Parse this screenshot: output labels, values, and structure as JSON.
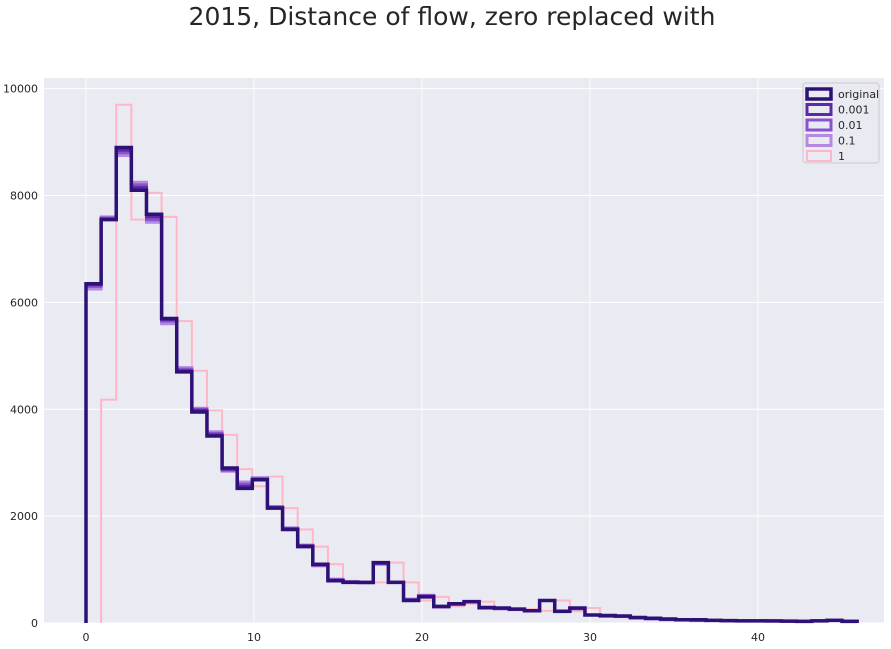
{
  "chart_data": {
    "type": "histogram",
    "title": "2015, Distance of flow, zero replaced with",
    "xlabel": "",
    "ylabel": "",
    "xlim": [
      -2.5,
      47.5
    ],
    "ylim": [
      0,
      10200
    ],
    "xticks": [
      0,
      10,
      20,
      30,
      40
    ],
    "yticks": [
      0,
      2000,
      4000,
      6000,
      8000,
      10000
    ],
    "grid": true,
    "legend_position": "top-right",
    "bin_width": 0.9,
    "series": [
      {
        "name": "original",
        "color": "#2d1177",
        "line_width": 3.5,
        "x_start": 0,
        "values": [
          6350,
          7550,
          8900,
          8100,
          7650,
          5700,
          4700,
          3950,
          3500,
          2900,
          2520,
          2680,
          2150,
          1750,
          1430,
          1100,
          790,
          760,
          760,
          1130,
          760,
          420,
          490,
          310,
          360,
          400,
          290,
          280,
          260,
          230,
          420,
          220,
          280,
          150,
          140,
          130,
          100,
          90,
          75,
          60,
          60,
          50,
          45,
          40,
          40,
          40,
          35,
          30,
          40,
          50,
          30
        ]
      },
      {
        "name": "0.001",
        "color": "#5c2aa5",
        "line_width": 3,
        "x_start": 0,
        "values": [
          6330,
          7560,
          8850,
          8150,
          7600,
          5680,
          4720,
          3980,
          3520,
          2880,
          2560,
          2690,
          2160,
          1760,
          1440,
          1090,
          800,
          765,
          760,
          1120,
          760,
          430,
          500,
          305,
          355,
          400,
          285,
          275,
          260,
          230,
          420,
          220,
          275,
          150,
          135,
          130,
          100,
          85,
          70,
          60,
          55,
          50,
          45,
          40,
          40,
          38,
          35,
          30,
          40,
          50,
          30
        ]
      },
      {
        "name": "0.01",
        "color": "#8a52cc",
        "line_width": 3,
        "x_start": 0,
        "values": [
          6300,
          7580,
          8800,
          8200,
          7550,
          5650,
          4750,
          4000,
          3550,
          2860,
          2600,
          2700,
          2170,
          1770,
          1450,
          1080,
          810,
          770,
          755,
          1110,
          760,
          440,
          510,
          300,
          350,
          400,
          280,
          270,
          255,
          230,
          420,
          215,
          270,
          150,
          130,
          125,
          100,
          80,
          65,
          60,
          50,
          50,
          40,
          40,
          40,
          35,
          35,
          30,
          40,
          50,
          30
        ]
      },
      {
        "name": "0.1",
        "color": "#b48ae0",
        "line_width": 3,
        "x_start": 0,
        "values": [
          6250,
          7600,
          8750,
          8250,
          7500,
          5600,
          4780,
          4020,
          3580,
          2840,
          2640,
          2720,
          2180,
          1780,
          1460,
          1070,
          820,
          775,
          750,
          1100,
          760,
          450,
          520,
          300,
          345,
          400,
          275,
          265,
          250,
          225,
          420,
          210,
          265,
          150,
          125,
          120,
          100,
          75,
          60,
          60,
          45,
          50,
          40,
          40,
          40,
          35,
          35,
          30,
          40,
          50,
          30
        ]
      },
      {
        "name": "1",
        "color": "#ffb6c8",
        "line_width": 2,
        "x_start": 0.9,
        "values": [
          4180,
          9700,
          7550,
          8050,
          7600,
          5650,
          4720,
          3980,
          3520,
          2880,
          2560,
          2740,
          2150,
          1750,
          1430,
          1100,
          790,
          760,
          760,
          1130,
          760,
          420,
          490,
          310,
          360,
          400,
          290,
          280,
          260,
          230,
          420,
          220,
          280,
          150,
          140,
          130,
          100,
          90,
          75,
          60,
          60,
          50,
          45,
          40,
          40,
          40,
          35,
          30,
          40,
          50
        ]
      }
    ]
  }
}
